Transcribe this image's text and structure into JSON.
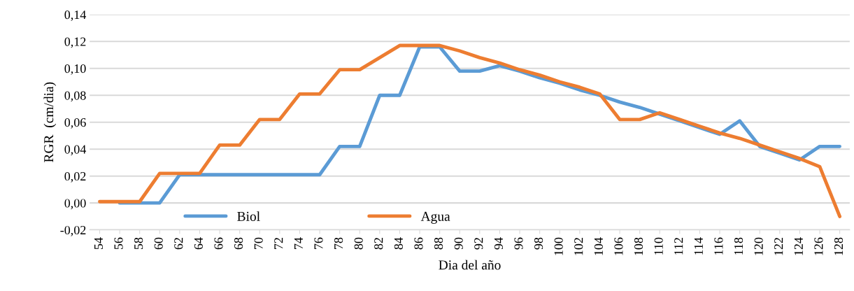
{
  "chart_data": {
    "type": "line",
    "xlabel": "Dia del año",
    "ylabel": "RGR  (cm/dia)",
    "categories": [
      "54",
      "56",
      "58",
      "60",
      "62",
      "64",
      "66",
      "68",
      "70",
      "72",
      "74",
      "76",
      "78",
      "80",
      "82",
      "84",
      "86",
      "88",
      "90",
      "92",
      "94",
      "96",
      "98",
      "100",
      "102",
      "104",
      "106",
      "108",
      "110",
      "112",
      "114",
      "116",
      "118",
      "120",
      "122",
      "124",
      "126",
      "128"
    ],
    "series": [
      {
        "name": "Biol",
        "color": "#5b9bd5",
        "values": [
          null,
          0,
          0,
          0,
          0.021,
          0.021,
          0.021,
          0.021,
          0.021,
          0.021,
          0.021,
          0.021,
          0.042,
          0.042,
          0.08,
          0.08,
          0.116,
          0.116,
          0.098,
          0.098,
          0.102,
          0.098,
          0.093,
          0.089,
          0.084,
          0.08,
          0.075,
          0.071,
          0.066,
          0.061,
          0.056,
          0.051,
          0.061,
          0.042,
          0.037,
          0.032,
          0.042,
          0.042
        ]
      },
      {
        "name": "Agua",
        "color": "#ed7d31",
        "values": [
          0.001,
          0.001,
          0.001,
          0.022,
          0.022,
          0.022,
          0.043,
          0.043,
          0.062,
          0.062,
          0.081,
          0.081,
          0.099,
          0.099,
          0.108,
          0.117,
          0.117,
          0.117,
          0.113,
          0.108,
          0.104,
          0.099,
          0.095,
          0.09,
          0.086,
          0.081,
          0.062,
          0.062,
          0.067,
          0.062,
          0.057,
          0.052,
          0.048,
          0.043,
          0.038,
          0.033,
          0.027,
          -0.01
        ]
      }
    ],
    "ylim": [
      -0.02,
      0.14
    ],
    "yticks": [
      {
        "value": -0.02,
        "label": "-0,02"
      },
      {
        "value": 0,
        "label": "0,00"
      },
      {
        "value": 0.02,
        "label": "0,02"
      },
      {
        "value": 0.04,
        "label": "0,04"
      },
      {
        "value": 0.06,
        "label": "0,06"
      },
      {
        "value": 0.08,
        "label": "0,08"
      },
      {
        "value": 0.1,
        "label": "0,10"
      },
      {
        "value": 0.12,
        "label": "0,12"
      },
      {
        "value": 0.14,
        "label": "0,14"
      }
    ],
    "grid": "y",
    "legend": "bottom",
    "marker": "none",
    "line_style": "solid"
  }
}
